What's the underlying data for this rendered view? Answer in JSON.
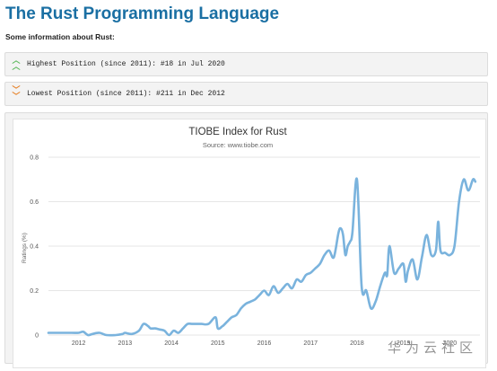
{
  "page": {
    "title": "The Rust Programming Language",
    "subtitle": "Some information about Rust:",
    "highest": {
      "icon": "double-chevron-up-icon",
      "text": "Highest Position (since 2011): #18 in Jul 2020"
    },
    "lowest": {
      "icon": "double-chevron-down-icon",
      "text": "Lowest Position (since 2011): #211 in Dec 2012"
    },
    "watermark": "华为云社区"
  },
  "colors": {
    "title": "#1a6fa3",
    "line": "#7ab3dd",
    "up": "#5cb85c",
    "down": "#e67e22"
  },
  "chart_data": {
    "type": "line",
    "title": "TIOBE Index for Rust",
    "subtitle": "Source: www.tiobe.com",
    "ylabel": "Ratings (%)",
    "xlabel": "",
    "xlim": [
      2011.35,
      2020.65
    ],
    "ylim": [
      0,
      0.8
    ],
    "yticks": [
      0,
      0.2,
      0.4,
      0.6,
      0.8
    ],
    "ytick_labels": [
      "0",
      "0.2",
      "0.4",
      "0.6",
      "0.8"
    ],
    "xticks": [
      2012,
      2013,
      2014,
      2015,
      2016,
      2017,
      2018,
      2019,
      2020
    ],
    "xtick_labels": [
      "2012",
      "2013",
      "2014",
      "2015",
      "2016",
      "2017",
      "2018",
      "2019",
      "2020"
    ],
    "grid": true,
    "legend": false,
    "series": [
      {
        "x": [
          2011.35,
          2011.6,
          2011.85,
          2012.0,
          2012.1,
          2012.2,
          2012.3,
          2012.45,
          2012.6,
          2012.8,
          2012.95,
          2013.0,
          2013.15,
          2013.3,
          2013.4,
          2013.5,
          2013.55,
          2013.65,
          2013.75,
          2013.85,
          2013.95,
          2014.05,
          2014.15,
          2014.25,
          2014.35,
          2014.45,
          2014.55,
          2014.65,
          2014.8,
          2014.95,
          2015.0,
          2015.1,
          2015.2,
          2015.3,
          2015.4,
          2015.5,
          2015.6,
          2015.7,
          2015.8,
          2015.9,
          2016.0,
          2016.1,
          2016.2,
          2016.3,
          2016.4,
          2016.5,
          2016.6,
          2016.7,
          2016.8,
          2016.9,
          2017.0,
          2017.1,
          2017.2,
          2017.3,
          2017.4,
          2017.5,
          2017.6,
          2017.65,
          2017.7,
          2017.75,
          2017.8,
          2017.85,
          2017.9,
          2018.0,
          2018.1,
          2018.2,
          2018.3,
          2018.4,
          2018.5,
          2018.6,
          2018.65,
          2018.7,
          2018.8,
          2018.9,
          2019.0,
          2019.05,
          2019.1,
          2019.2,
          2019.3,
          2019.4,
          2019.5,
          2019.6,
          2019.7,
          2019.75,
          2019.8,
          2019.9,
          2020.0,
          2020.1,
          2020.2,
          2020.3,
          2020.4,
          2020.5,
          2020.55
        ],
        "values": [
          0.01,
          0.01,
          0.01,
          0.01,
          0.015,
          0.0,
          0.005,
          0.01,
          0.0,
          0.0,
          0.005,
          0.01,
          0.005,
          0.02,
          0.05,
          0.04,
          0.03,
          0.03,
          0.025,
          0.02,
          0.0,
          0.02,
          0.01,
          0.03,
          0.05,
          0.05,
          0.05,
          0.05,
          0.05,
          0.08,
          0.03,
          0.04,
          0.06,
          0.08,
          0.09,
          0.12,
          0.14,
          0.15,
          0.16,
          0.18,
          0.2,
          0.18,
          0.22,
          0.19,
          0.21,
          0.23,
          0.21,
          0.25,
          0.24,
          0.27,
          0.28,
          0.3,
          0.32,
          0.36,
          0.38,
          0.35,
          0.46,
          0.48,
          0.45,
          0.36,
          0.4,
          0.42,
          0.46,
          0.7,
          0.22,
          0.2,
          0.12,
          0.15,
          0.22,
          0.28,
          0.27,
          0.4,
          0.28,
          0.3,
          0.32,
          0.24,
          0.29,
          0.34,
          0.25,
          0.35,
          0.45,
          0.36,
          0.38,
          0.51,
          0.38,
          0.37,
          0.36,
          0.4,
          0.6,
          0.7,
          0.65,
          0.7,
          0.69
        ]
      }
    ]
  }
}
